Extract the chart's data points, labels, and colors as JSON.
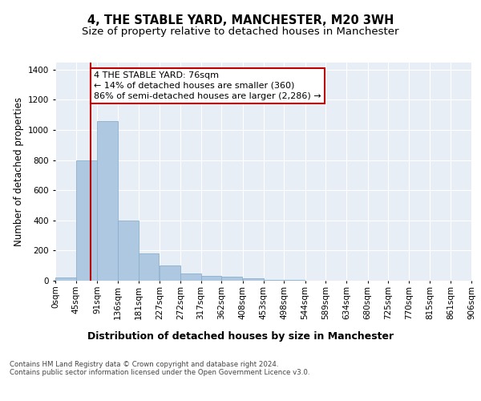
{
  "title": "4, THE STABLE YARD, MANCHESTER, M20 3WH",
  "subtitle": "Size of property relative to detached houses in Manchester",
  "xlabel": "Distribution of detached houses by size in Manchester",
  "ylabel": "Number of detached properties",
  "bar_color": "#adc8e0",
  "bar_edge_color": "#8ab0cc",
  "background_color": "#e8eef6",
  "grid_color": "#ffffff",
  "property_line_x": 76,
  "property_line_color": "#bb0000",
  "annotation_text": "4 THE STABLE YARD: 76sqm\n← 14% of detached houses are smaller (360)\n86% of semi-detached houses are larger (2,286) →",
  "annotation_box_color": "#bb0000",
  "bin_edges": [
    0,
    45,
    91,
    136,
    181,
    227,
    272,
    317,
    362,
    408,
    453,
    498,
    544,
    589,
    634,
    680,
    725,
    770,
    815,
    861,
    906
  ],
  "bin_labels": [
    "0sqm",
    "45sqm",
    "91sqm",
    "136sqm",
    "181sqm",
    "227sqm",
    "272sqm",
    "317sqm",
    "362sqm",
    "408sqm",
    "453sqm",
    "498sqm",
    "544sqm",
    "589sqm",
    "634sqm",
    "680sqm",
    "725sqm",
    "770sqm",
    "815sqm",
    "861sqm",
    "906sqm"
  ],
  "bar_heights": [
    20,
    800,
    1060,
    400,
    180,
    100,
    50,
    30,
    25,
    15,
    5,
    3,
    2,
    1,
    1,
    0,
    0,
    0,
    0,
    0
  ],
  "ylim": [
    0,
    1450
  ],
  "xlim": [
    0,
    906
  ],
  "footer_text": "Contains HM Land Registry data © Crown copyright and database right 2024.\nContains public sector information licensed under the Open Government Licence v3.0.",
  "title_fontsize": 10.5,
  "subtitle_fontsize": 9.5,
  "tick_fontsize": 7.5,
  "ylabel_fontsize": 8.5,
  "xlabel_fontsize": 9,
  "annotation_fontsize": 8
}
